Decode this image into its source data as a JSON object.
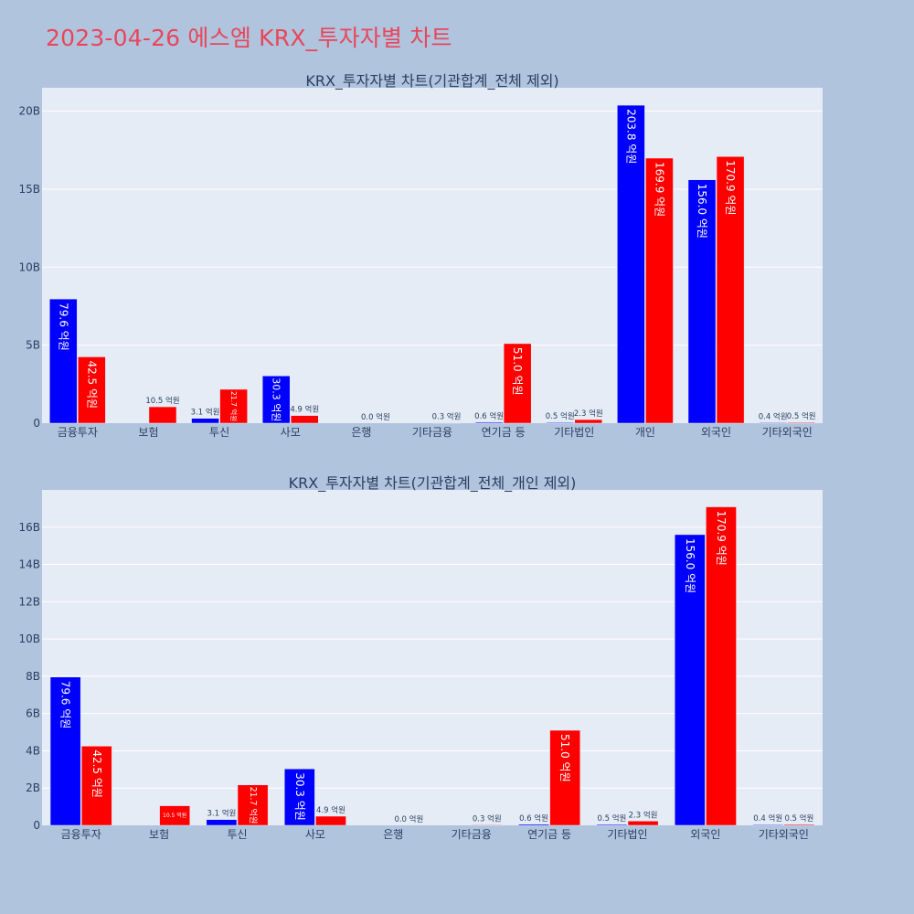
{
  "page_title": "2023-04-26 에스엠 KRX_투자자별 차트",
  "colors": {
    "background": "#b0c4de",
    "plot_bg": "#e5ecf6",
    "series_a": "#0000ff",
    "series_b": "#ff0000",
    "title": "#e8465a"
  },
  "chart_data": [
    {
      "type": "bar",
      "title": "KRX_투자자별 차트(기관합계_전체 제외)",
      "categories": [
        "금융투자",
        "보험",
        "투신",
        "사모",
        "은행",
        "기타금융",
        "연기금 등",
        "기타법인",
        "개인",
        "외국인",
        "기타외국인"
      ],
      "ylim": [
        0,
        21.5
      ],
      "yticks": [
        0,
        5,
        10,
        15,
        20
      ],
      "ytick_labels": [
        "0",
        "5B",
        "10B",
        "15B",
        "20B"
      ],
      "grid": true,
      "series": [
        {
          "color": "#0000ff",
          "values": [
            7.96,
            0,
            0.31,
            3.03,
            0,
            0,
            0.06,
            0.05,
            20.38,
            15.6,
            0.04
          ],
          "labels": [
            "79.6 억원",
            "",
            "3.1 억원",
            "30.3 억원",
            "",
            "",
            "0.6 억원",
            "0.5 억원",
            "203.8 억원",
            "156.0 억원",
            "0.4 억원"
          ]
        },
        {
          "color": "#ff0000",
          "values": [
            4.25,
            1.05,
            2.17,
            0.49,
            0.0,
            0.03,
            5.1,
            0.23,
            16.99,
            17.09,
            0.05
          ],
          "labels": [
            "42.5 억원",
            "10.5 억원",
            "21.7 억원",
            "4.9 억원",
            "0.0 억원",
            "0.3 억원",
            "51.0 억원",
            "2.3 억원",
            "169.9 억원",
            "170.9 억원",
            "0.5 억원"
          ]
        }
      ]
    },
    {
      "type": "bar",
      "title": "KRX_투자자별 차트(기관합계_전체_개인 제외)",
      "categories": [
        "금융투자",
        "보험",
        "투신",
        "사모",
        "은행",
        "기타금융",
        "연기금 등",
        "기타법인",
        "외국인",
        "기타외국인"
      ],
      "ylim": [
        0,
        18
      ],
      "yticks": [
        0,
        2,
        4,
        6,
        8,
        10,
        12,
        14,
        16
      ],
      "ytick_labels": [
        "0",
        "2B",
        "4B",
        "6B",
        "8B",
        "10B",
        "12B",
        "14B",
        "16B"
      ],
      "grid": true,
      "series": [
        {
          "color": "#0000ff",
          "values": [
            7.96,
            0,
            0.31,
            3.03,
            0,
            0,
            0.06,
            0.05,
            15.6,
            0.04
          ],
          "labels": [
            "79.6 억원",
            "",
            "3.1 억원",
            "30.3 억원",
            "",
            "",
            "0.6 억원",
            "0.5 억원",
            "156.0 억원",
            "0.4 억원"
          ]
        },
        {
          "color": "#ff0000",
          "values": [
            4.25,
            1.05,
            2.17,
            0.49,
            0.0,
            0.03,
            5.1,
            0.23,
            17.09,
            0.05
          ],
          "labels": [
            "42.5 억원",
            "10.5 억원",
            "21.7 억원",
            "4.9 억원",
            "0.0 억원",
            "0.3 억원",
            "51.0 억원",
            "2.3 억원",
            "170.9 억원",
            "0.5 억원"
          ]
        }
      ]
    }
  ]
}
